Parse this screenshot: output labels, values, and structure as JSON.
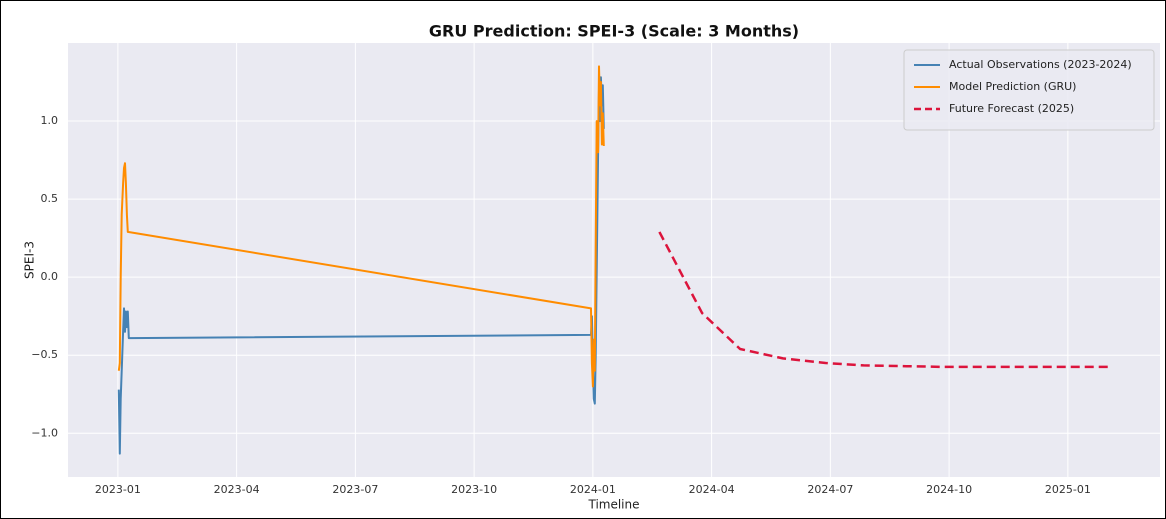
{
  "chart_data": {
    "type": "line",
    "title": "GRU Prediction: SPEI-3 (Scale: 3 Months)",
    "xlabel": "Timeline",
    "ylabel": "SPEI-3",
    "xlim": [
      2022.895,
      2025.194
    ],
    "ylim": [
      -1.28,
      1.5
    ],
    "xticks": [
      {
        "value": 2023.0,
        "label": "2023-01"
      },
      {
        "value": 2023.25,
        "label": "2023-04"
      },
      {
        "value": 2023.5,
        "label": "2023-07"
      },
      {
        "value": 2023.75,
        "label": "2023-10"
      },
      {
        "value": 2024.0,
        "label": "2024-01"
      },
      {
        "value": 2024.25,
        "label": "2024-04"
      },
      {
        "value": 2024.5,
        "label": "2024-07"
      },
      {
        "value": 2024.75,
        "label": "2024-10"
      },
      {
        "value": 2025.0,
        "label": "2025-01"
      }
    ],
    "yticks": [
      {
        "value": -1.0,
        "label": "−1.0"
      },
      {
        "value": -0.5,
        "label": "−0.5"
      },
      {
        "value": 0.0,
        "label": "0.0"
      },
      {
        "value": 0.5,
        "label": "0.5"
      },
      {
        "value": 1.0,
        "label": "1.0"
      }
    ],
    "grid": true,
    "legend": "upper right",
    "series": [
      {
        "name": "Actual Observations (2023-2024)",
        "color": "#4682b4",
        "dash": false,
        "x": [
          2023.002,
          2023.004,
          2023.006,
          2023.011,
          2023.013,
          2023.015,
          2023.017,
          2023.019,
          2023.021,
          2023.023,
          2023.996,
          2023.998,
          2024.0,
          2024.002,
          2024.004,
          2024.006,
          2024.011,
          2024.013,
          2024.015,
          2024.017,
          2024.019,
          2024.021,
          2024.023
        ],
        "values": [
          -0.72,
          -1.13,
          -0.78,
          -0.35,
          -0.2,
          -0.35,
          -0.22,
          -0.32,
          -0.22,
          -0.39,
          -0.37,
          -0.25,
          -0.55,
          -0.78,
          -0.81,
          -0.5,
          0.8,
          1.2,
          1.0,
          1.28,
          1.1,
          1.23,
          0.95
        ]
      },
      {
        "name": "Model Prediction (GRU)",
        "color": "#ff8c00",
        "dash": false,
        "x": [
          2023.002,
          2023.004,
          2023.006,
          2023.008,
          2023.011,
          2023.013,
          2023.015,
          2023.017,
          2023.019,
          2023.021,
          2023.996,
          2023.998,
          2024.0,
          2024.002,
          2024.004,
          2024.006,
          2024.008,
          2024.011,
          2024.013,
          2024.015,
          2024.017,
          2024.019,
          2024.021,
          2024.023
        ],
        "values": [
          -0.6,
          -0.55,
          0.0,
          0.4,
          0.6,
          0.7,
          0.73,
          0.6,
          0.4,
          0.29,
          -0.2,
          -0.55,
          -0.7,
          -0.4,
          -0.6,
          0.2,
          1.0,
          0.8,
          1.35,
          1.1,
          1.25,
          0.85,
          1.05,
          0.84
        ]
      },
      {
        "name": "Future Forecast (2025)",
        "color": "#dc143c",
        "dash": true,
        "x": [
          2024.14,
          2024.23,
          2024.31,
          2024.4,
          2024.49,
          2024.57,
          2024.66,
          2024.74,
          2024.83,
          2024.92,
          2025.0,
          2025.09
        ],
        "values": [
          0.29,
          -0.23,
          -0.46,
          -0.52,
          -0.55,
          -0.565,
          -0.57,
          -0.575,
          -0.575,
          -0.575,
          -0.575,
          -0.575
        ]
      }
    ]
  }
}
